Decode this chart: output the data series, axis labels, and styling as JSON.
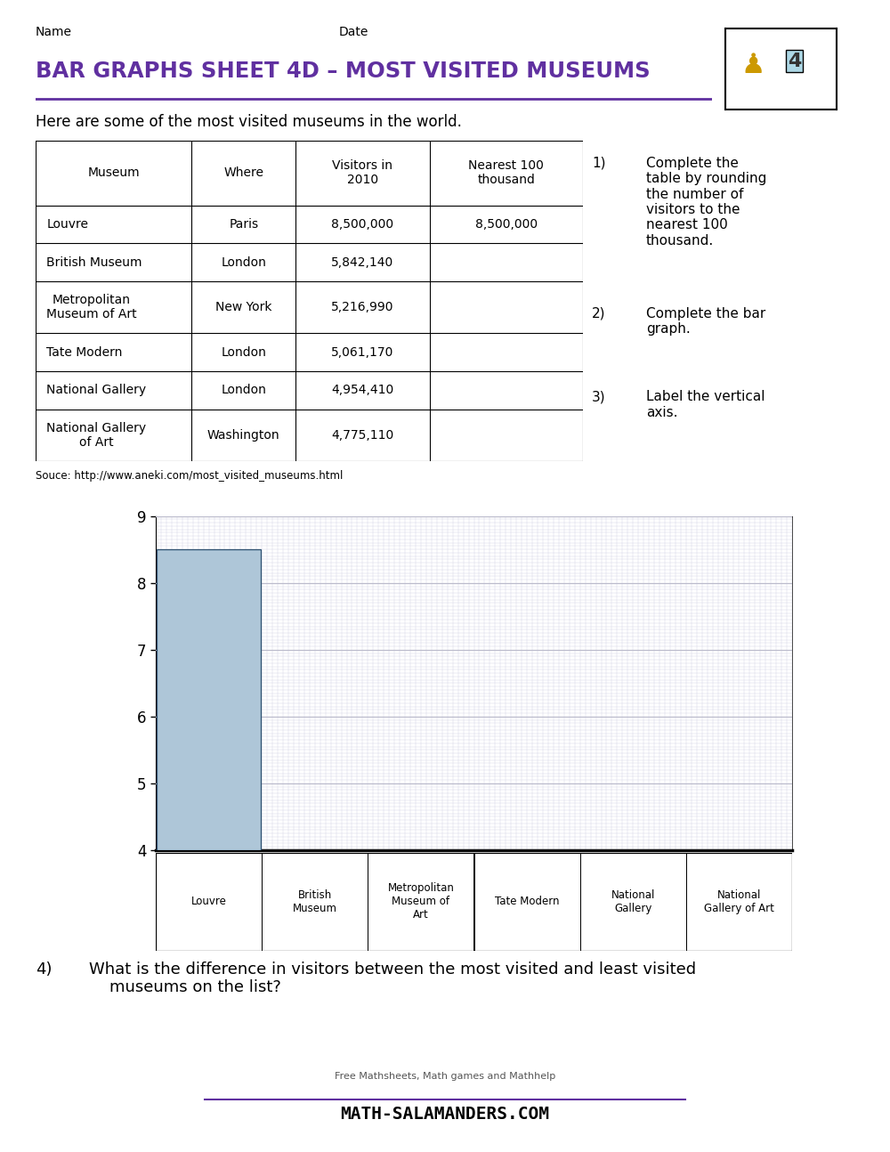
{
  "title": "BAR GRAPHS SHEET 4D – MOST VISITED MUSEUMS",
  "subtitle": "Here are some of the most visited museums in the world.",
  "name_label": "Name",
  "date_label": "Date",
  "source_text": "Souce: http://www.aneki.com/most_visited_museums.html",
  "table_headers": [
    "Museum",
    "Where",
    "Visitors in\n2010",
    "Nearest 100\nthousand"
  ],
  "table_data": [
    [
      "Louvre",
      "Paris",
      "8,500,000",
      "8,500,000"
    ],
    [
      "British Museum",
      "London",
      "5,842,140",
      ""
    ],
    [
      "Metropolitan\nMuseum of Art",
      "New York",
      "5,216,990",
      ""
    ],
    [
      "Tate Modern",
      "London",
      "5,061,170",
      ""
    ],
    [
      "National Gallery",
      "London",
      "4,954,410",
      ""
    ],
    [
      "National Gallery\nof Art",
      "Washington",
      "4,775,110",
      ""
    ]
  ],
  "instructions": [
    "Complete the\ntable by rounding\nthe number of\nvisitors to the\nnearest 100\nthousand.",
    "Complete the bar\ngraph.",
    "Label the vertical\naxis."
  ],
  "bar_value": 8.5,
  "bar_color": "#aec6d8",
  "bar_edge_color": "#2c5070",
  "chart_ylim": [
    4,
    9
  ],
  "chart_yticks": [
    4,
    5,
    6,
    7,
    8,
    9
  ],
  "chart_xlabel_museums": [
    "Louvre",
    "British\nMuseum",
    "Metropolitan\nMuseum of\nArt",
    "Tate Modern",
    "National\nGallery",
    "National\nGallery of Art"
  ],
  "question4_num": "4)",
  "question4_text": "What is the difference in visitors between the most visited and least visited\n    museums on the list?",
  "title_color": "#6030a0",
  "bg_color": "#ffffff",
  "grid_major_color": "#bbbbcc",
  "grid_minor_color": "#d8d8e8",
  "top_border_color": "#000000",
  "footer_text1": "Free Mathsheets, Math games and Mathhelp",
  "footer_text2": "MATH-SALAMANDERS.COM",
  "footer_line_color": "#6030a0"
}
